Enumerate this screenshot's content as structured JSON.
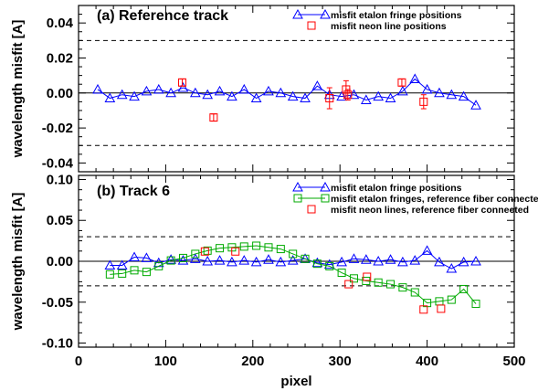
{
  "chart_data": [
    {
      "type": "scatter",
      "title": "(a) Reference track",
      "ylabel": "wavelength misfit [A]",
      "xlabel": "",
      "xlim": [
        0,
        500
      ],
      "ylim": [
        -0.045,
        0.05
      ],
      "yticks": [
        -0.04,
        -0.02,
        0.0,
        0.02,
        0.04
      ],
      "ytick_labels": [
        "-0.04",
        "-0.02",
        "0.00",
        "0.02",
        "0.04"
      ],
      "hlines_dashed": [
        0.03,
        -0.03
      ],
      "hline_solid": 0,
      "legend_position": "top-right",
      "series": [
        {
          "name": "misfit etalon fringe positions",
          "color": "#0000ff",
          "marker": "triangle",
          "line": true,
          "x": [
            22,
            36,
            50,
            64,
            78,
            92,
            106,
            120,
            134,
            148,
            162,
            176,
            190,
            204,
            218,
            232,
            246,
            260,
            274,
            288,
            302,
            316,
            330,
            344,
            358,
            372,
            386,
            400,
            414,
            428,
            442,
            456
          ],
          "y": [
            0.002,
            -0.003,
            -0.001,
            -0.002,
            0.001,
            0.002,
            0.0,
            0.003,
            0.0,
            -0.001,
            0.001,
            -0.002,
            0.002,
            -0.003,
            0.001,
            0.0,
            -0.002,
            -0.003,
            0.004,
            -0.001,
            -0.002,
            -0.001,
            -0.004,
            -0.002,
            -0.003,
            0.001,
            0.008,
            0.002,
            0.0,
            -0.001,
            -0.002,
            -0.007
          ]
        },
        {
          "name": "misfit neon line positions",
          "color": "#ff0000",
          "marker": "square",
          "line": false,
          "x": [
            119,
            155,
            288,
            307,
            309,
            371,
            396
          ],
          "y": [
            0.006,
            -0.014,
            -0.003,
            0.002,
            -0.001,
            0.006,
            -0.005
          ],
          "yerr": [
            0.002,
            0.002,
            0.006,
            0.005,
            0.003,
            0.002,
            0.004
          ]
        }
      ]
    },
    {
      "type": "scatter",
      "title": "(b) Track 6",
      "ylabel": "wavelength misfit [A]",
      "xlabel": "pixel",
      "xlim": [
        0,
        500
      ],
      "ylim": [
        -0.105,
        0.105
      ],
      "xticks": [
        0,
        100,
        200,
        300,
        400,
        500
      ],
      "xtick_labels": [
        "0",
        "100",
        "200",
        "300",
        "400",
        "500"
      ],
      "yticks": [
        -0.1,
        -0.05,
        0.0,
        0.05,
        0.1
      ],
      "ytick_labels": [
        "-0.10",
        "-0.05",
        "0.00",
        "0.05",
        "0.10"
      ],
      "hlines_dashed": [
        0.03,
        -0.03
      ],
      "hline_solid": 0,
      "legend_position": "top-right",
      "series": [
        {
          "name": "misfit etalon fringe positions",
          "color": "#0000ff",
          "marker": "triangle",
          "line": true,
          "x": [
            36,
            50,
            64,
            78,
            92,
            106,
            120,
            134,
            148,
            162,
            176,
            190,
            204,
            218,
            232,
            246,
            260,
            274,
            288,
            302,
            316,
            330,
            344,
            358,
            372,
            386,
            400,
            414,
            428,
            442,
            456
          ],
          "y": [
            -0.005,
            -0.005,
            0.005,
            0.004,
            -0.002,
            0.002,
            0.001,
            0.003,
            0.0,
            0.001,
            -0.001,
            0.001,
            -0.001,
            0.002,
            -0.001,
            0.001,
            0.003,
            -0.002,
            -0.004,
            -0.001,
            0.003,
            0.002,
            0.0,
            0.002,
            -0.001,
            0.001,
            0.013,
            -0.001,
            -0.009,
            -0.001,
            0.0
          ]
        },
        {
          "name": "misfit etalon fringes, reference fiber connected",
          "color": "#00aa00",
          "marker": "square",
          "line": true,
          "x": [
            36,
            50,
            64,
            78,
            92,
            106,
            120,
            134,
            148,
            162,
            176,
            190,
            204,
            218,
            232,
            246,
            260,
            274,
            288,
            302,
            316,
            330,
            344,
            358,
            372,
            386,
            400,
            414,
            428,
            442,
            456
          ],
          "y": [
            -0.016,
            -0.015,
            -0.011,
            -0.013,
            -0.006,
            0.001,
            0.004,
            0.009,
            0.013,
            0.016,
            0.017,
            0.018,
            0.019,
            0.017,
            0.015,
            0.009,
            0.003,
            -0.003,
            -0.006,
            -0.014,
            -0.021,
            -0.024,
            -0.026,
            -0.028,
            -0.032,
            -0.038,
            -0.051,
            -0.049,
            -0.047,
            -0.034,
            -0.052
          ]
        },
        {
          "name": "misfit neon lines, reference fiber connected",
          "color": "#ff0000",
          "marker": "square",
          "line": false,
          "x": [
            145,
            180,
            310,
            331,
            396,
            416
          ],
          "y": [
            0.012,
            0.012,
            -0.028,
            -0.019,
            -0.059,
            -0.058
          ]
        }
      ]
    }
  ]
}
